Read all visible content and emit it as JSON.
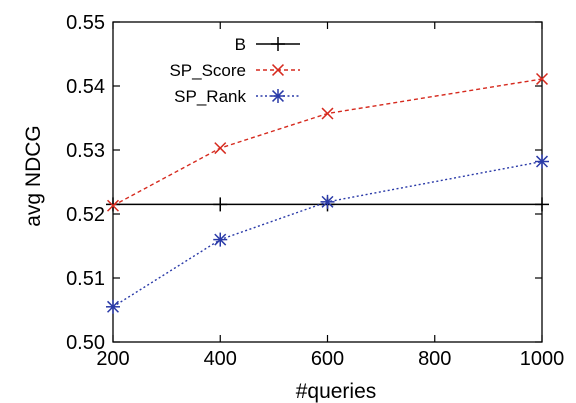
{
  "chart_data": {
    "type": "line",
    "xlabel": "#queries",
    "ylabel": "avg NDCG",
    "xlim": [
      200,
      1000
    ],
    "ylim": [
      0.5,
      0.55
    ],
    "xticks": [
      "200",
      "400",
      "600",
      "800",
      "1000"
    ],
    "yticks": [
      "0.50",
      "0.51",
      "0.52",
      "0.53",
      "0.54",
      "0.55"
    ],
    "grid": false,
    "legend_position": "top-left",
    "series": [
      {
        "name": "B",
        "color": "#000000",
        "marker": "plus",
        "line": "solid",
        "x": [
          200,
          400,
          600,
          1000
        ],
        "y": [
          0.5215,
          0.5215,
          0.5215,
          0.5215
        ]
      },
      {
        "name": "SP_Score",
        "color": "#d62a1e",
        "marker": "x",
        "line": "dashed",
        "x": [
          200,
          400,
          600,
          1000
        ],
        "y": [
          0.5213,
          0.5303,
          0.5357,
          0.5411
        ]
      },
      {
        "name": "SP_Rank",
        "color": "#2a3aa8",
        "marker": "star",
        "line": "dotted",
        "x": [
          200,
          400,
          600,
          1000
        ],
        "y": [
          0.5055,
          0.516,
          0.5219,
          0.5282
        ]
      }
    ]
  }
}
